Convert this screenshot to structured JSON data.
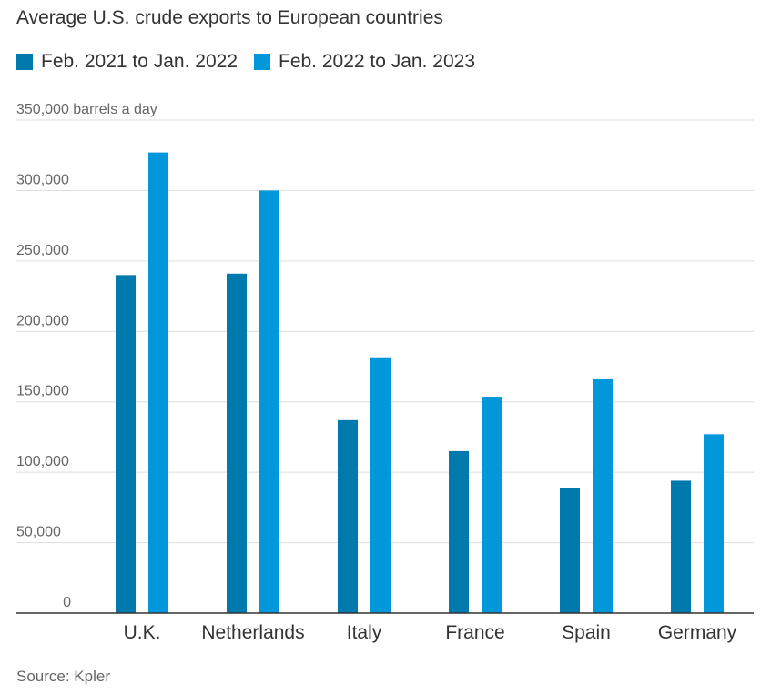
{
  "chart_data": {
    "type": "bar",
    "title": "Average U.S. crude exports to European countries",
    "ylabel": "barrels a day",
    "top_tick_label": "350,000 barrels a day",
    "source": "Source: Kpler",
    "categories": [
      "U.K.",
      "Netherlands",
      "Italy",
      "France",
      "Spain",
      "Germany"
    ],
    "series": [
      {
        "name": "Feb. 2021 to Jan. 2022",
        "color": "#0079ad",
        "values": [
          240000,
          241000,
          137000,
          115000,
          89000,
          94000
        ]
      },
      {
        "name": "Feb. 2022 to Jan. 2023",
        "color": "#0098db",
        "values": [
          327000,
          300000,
          181000,
          153000,
          166000,
          127000
        ]
      }
    ],
    "ylim": [
      0,
      350000
    ],
    "yticks": [
      0,
      50000,
      100000,
      150000,
      200000,
      250000,
      300000,
      350000
    ],
    "ytick_labels": [
      "0",
      "50,000",
      "100,000",
      "150,000",
      "200,000",
      "250,000",
      "300,000",
      "350,000 barrels a day"
    ],
    "grid": true,
    "legend": "top-left"
  }
}
